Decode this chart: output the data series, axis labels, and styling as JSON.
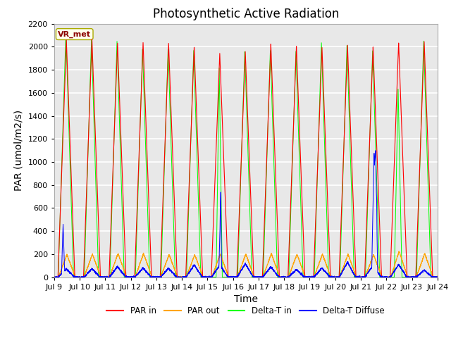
{
  "title": "Photosynthetic Active Radiation",
  "ylabel": "PAR (umol/m2/s)",
  "xlabel": "Time",
  "xlim_start": 9,
  "xlim_end": 24,
  "ylim": [
    0,
    2200
  ],
  "yticks": [
    0,
    200,
    400,
    600,
    800,
    1000,
    1200,
    1400,
    1600,
    1800,
    2000,
    2200
  ],
  "xtick_labels": [
    "Jul 9",
    "Jul 10",
    "Jul 11",
    "Jul 12",
    "Jul 13",
    "Jul 14",
    "Jul 15",
    "Jul 16",
    "Jul 17",
    "Jul 18",
    "Jul 19",
    "Jul 20",
    "Jul 21",
    "Jul 22",
    "Jul 23",
    "Jul 24"
  ],
  "xtick_positions": [
    9,
    10,
    11,
    12,
    13,
    14,
    15,
    16,
    17,
    18,
    19,
    20,
    21,
    22,
    23,
    24
  ],
  "legend_labels": [
    "PAR in",
    "PAR out",
    "Delta-T in",
    "Delta-T Diffuse"
  ],
  "legend_colors": [
    "red",
    "orange",
    "lime",
    "blue"
  ],
  "vr_met_box_color": "#ffffee",
  "vr_met_text_color": "#8b0000",
  "vr_met_edge_color": "#aaaa00",
  "background_color": "#e8e8e8",
  "grid_color": "white",
  "title_fontsize": 12,
  "axis_label_fontsize": 10,
  "tick_fontsize": 8
}
